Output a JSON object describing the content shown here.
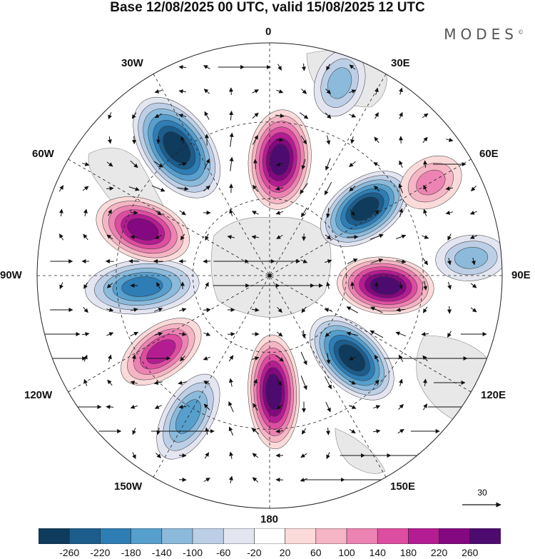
{
  "title": "Base 12/08/2025 00 UTC, valid 15/08/2025 12 UTC",
  "brand": "MODES",
  "brand_mark": "©",
  "longitude_labels": {
    "lon_0": "0",
    "lon_30e": "30E",
    "lon_60e": "60E",
    "lon_90e": "90E",
    "lon_120e": "120E",
    "lon_150e": "150E",
    "lon_180": "180",
    "lon_150w": "150W",
    "lon_120w": "120W",
    "lon_90w": "90W",
    "lon_60w": "60W",
    "lon_30w": "30W"
  },
  "reference_vector": {
    "label": "30"
  },
  "colorbar": {
    "ticks": [
      "-260",
      "-220",
      "-180",
      "-140",
      "-100",
      "-60",
      "-20",
      "20",
      "60",
      "100",
      "140",
      "180",
      "220",
      "260"
    ],
    "colors": [
      "#0f3b5c",
      "#1c5d8c",
      "#2e7db5",
      "#579fcc",
      "#8bbadb",
      "#bccfe6",
      "#e3e5f1",
      "#ffffff",
      "#fbdada",
      "#f5b5c4",
      "#ec83b2",
      "#dd4da0",
      "#b41d92",
      "#84087f",
      "#4d0b6f"
    ]
  },
  "anomaly_centers": [
    {
      "id": "neg-1",
      "lon_lat": "36W",
      "sign": "negative",
      "value": -260
    },
    {
      "id": "pos-1",
      "lon_lat": "5E",
      "sign": "positive",
      "value": 260
    },
    {
      "id": "neg-2",
      "lon_lat": "55E",
      "sign": "negative",
      "value": -260
    },
    {
      "id": "pos-2",
      "lon_lat": "95E",
      "sign": "positive",
      "value": 260
    },
    {
      "id": "neg-3",
      "lon_lat": "135E",
      "sign": "negative",
      "value": -260
    },
    {
      "id": "pos-3",
      "lon_lat": "178E",
      "sign": "positive",
      "value": 260
    },
    {
      "id": "neg-4",
      "lon_lat": "95W",
      "sign": "negative",
      "value": -200
    },
    {
      "id": "pos-4",
      "lon_lat": "70W",
      "sign": "positive",
      "value": 220
    },
    {
      "id": "pos-5",
      "lon_lat": "125W",
      "sign": "positive",
      "value": 200
    },
    {
      "id": "neg-5",
      "lon_lat": "150W",
      "sign": "negative",
      "value": -140
    },
    {
      "id": "neg-6",
      "lon_lat": "20E",
      "sign": "negative",
      "value": -100
    },
    {
      "id": "pos-6",
      "lon_lat": "60E",
      "sign": "positive",
      "value": 100
    },
    {
      "id": "neg-7",
      "lon_lat": "85E",
      "sign": "negative",
      "value": -100
    }
  ]
}
